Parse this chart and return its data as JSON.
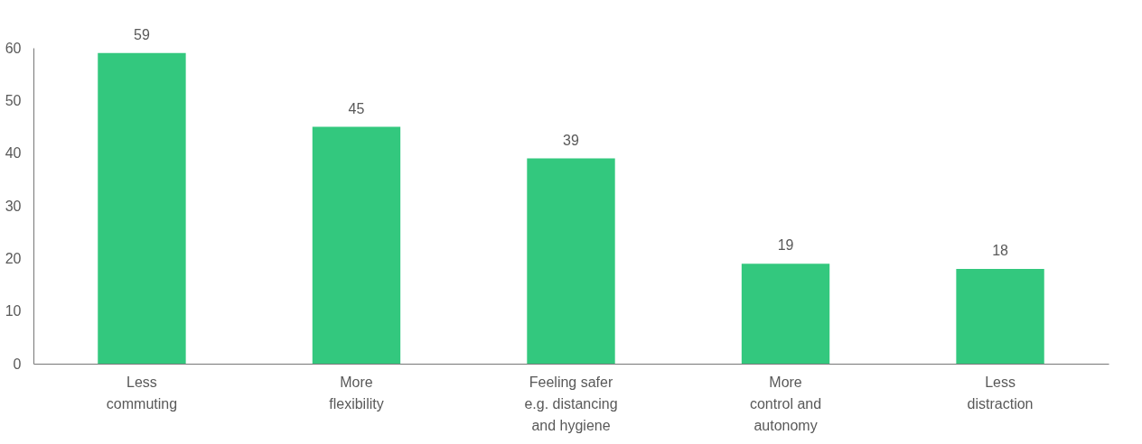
{
  "chart_data": {
    "type": "bar",
    "categories": [
      "Less\ncommuting",
      "More\nflexibility",
      "Feeling safer\ne.g. distancing\nand hygiene",
      "More\ncontrol and\nautonomy",
      "Less\ndistraction"
    ],
    "values": [
      59,
      45,
      39,
      19,
      18
    ],
    "color": "#33c87e",
    "ylim": [
      0,
      60
    ],
    "yticks": [
      0,
      10,
      20,
      30,
      40,
      50,
      60
    ],
    "grid": false,
    "data_labels": true
  }
}
